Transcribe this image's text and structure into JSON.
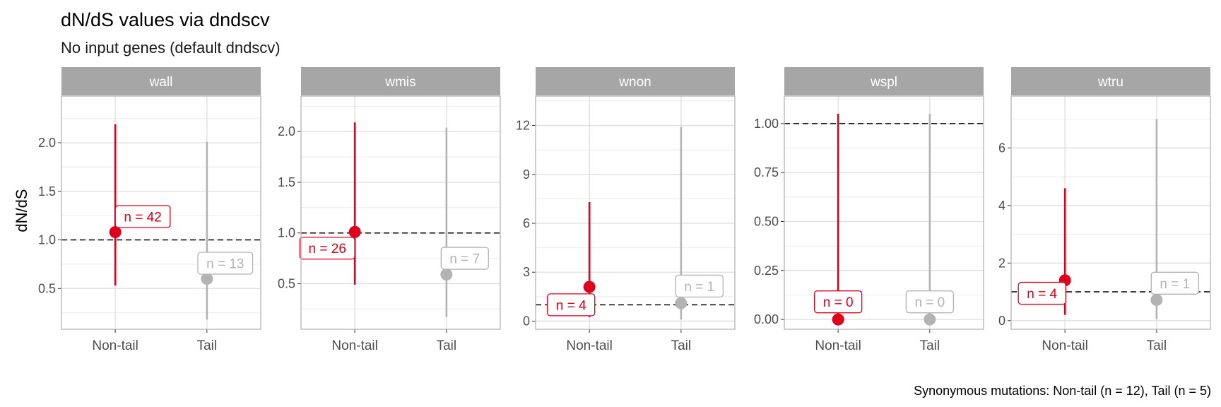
{
  "chart_data": {
    "type": "scatter",
    "title": "dN/dS values via dndscv",
    "subtitle": "No input genes (default dndscv)",
    "ylabel": "dN/dS",
    "caption": "Synonymous mutations: Non-tail (n = 12), Tail (n = 5)",
    "categories": [
      "Non-tail",
      "Tail"
    ],
    "colors": {
      "Non-tail": "#E0001B",
      "Tail": "#B3B3B3",
      "strip": "#A6A6A6",
      "reference_line": "#000000"
    },
    "reference_line": 1,
    "panels": [
      {
        "name": "wall",
        "ylim": [
          0.08,
          2.48
        ],
        "ticks": [
          0.5,
          1.0,
          1.5,
          2.0
        ],
        "tick_labels": [
          "0.5",
          "1.0",
          "1.5",
          "2.0"
        ],
        "points": [
          {
            "group": "Non-tail",
            "value": 1.08,
            "low": 0.53,
            "high": 2.19,
            "label": "n = 42",
            "label_y": 1.24,
            "label_dx": 0.3
          },
          {
            "group": "Tail",
            "value": 0.6,
            "low": 0.18,
            "high": 2.01,
            "label": "n = 13",
            "label_y": 0.76,
            "label_dx": 0.2
          }
        ]
      },
      {
        "name": "wmis",
        "ylim": [
          0.05,
          2.35
        ],
        "ticks": [
          0.5,
          1.0,
          1.5,
          2.0
        ],
        "tick_labels": [
          "0.5",
          "1.0",
          "1.5",
          "2.0"
        ],
        "points": [
          {
            "group": "Non-tail",
            "value": 1.01,
            "low": 0.49,
            "high": 2.09,
            "label": "n = 26",
            "label_y": 0.85,
            "label_dx": -0.3
          },
          {
            "group": "Tail",
            "value": 0.59,
            "low": 0.17,
            "high": 2.04,
            "label": "n = 7",
            "label_y": 0.75,
            "label_dx": 0.2
          }
        ]
      },
      {
        "name": "wnon",
        "ylim": [
          -0.5,
          13.8
        ],
        "ticks": [
          0,
          3,
          6,
          9,
          12
        ],
        "tick_labels": [
          "0",
          "3",
          "6",
          "9",
          "12"
        ],
        "points": [
          {
            "group": "Non-tail",
            "value": 2.1,
            "low": 0.25,
            "high": 7.3,
            "label": "n = 4",
            "label_y": 1.0,
            "label_dx": -0.2
          },
          {
            "group": "Tail",
            "value": 1.1,
            "low": 0.1,
            "high": 11.9,
            "label": "n = 1",
            "label_y": 2.15,
            "label_dx": 0.2
          }
        ]
      },
      {
        "name": "wspl",
        "ylim": [
          -0.05,
          1.14
        ],
        "ticks": [
          0.0,
          0.25,
          0.5,
          0.75,
          1.0
        ],
        "tick_labels": [
          "0.00",
          "0.25",
          "0.50",
          "0.75",
          "1.00"
        ],
        "points": [
          {
            "group": "Non-tail",
            "value": 0.0,
            "low": 0.0,
            "high": 1.05,
            "label": "n = 0",
            "label_y": 0.09,
            "label_dx": 0.0
          },
          {
            "group": "Tail",
            "value": 0.0,
            "low": 0.0,
            "high": 1.05,
            "label": "n = 0",
            "label_y": 0.09,
            "label_dx": 0.0
          }
        ]
      },
      {
        "name": "wtru",
        "ylim": [
          -0.3,
          7.8
        ],
        "ticks": [
          0,
          2,
          4,
          6
        ],
        "tick_labels": [
          "0",
          "2",
          "4",
          "6"
        ],
        "points": [
          {
            "group": "Non-tail",
            "value": 1.4,
            "low": 0.2,
            "high": 4.6,
            "label": "n = 4",
            "label_y": 0.95,
            "label_dx": -0.25
          },
          {
            "group": "Tail",
            "value": 0.72,
            "low": 0.05,
            "high": 7.0,
            "label": "n = 1",
            "label_y": 1.3,
            "label_dx": 0.2
          }
        ]
      }
    ]
  }
}
